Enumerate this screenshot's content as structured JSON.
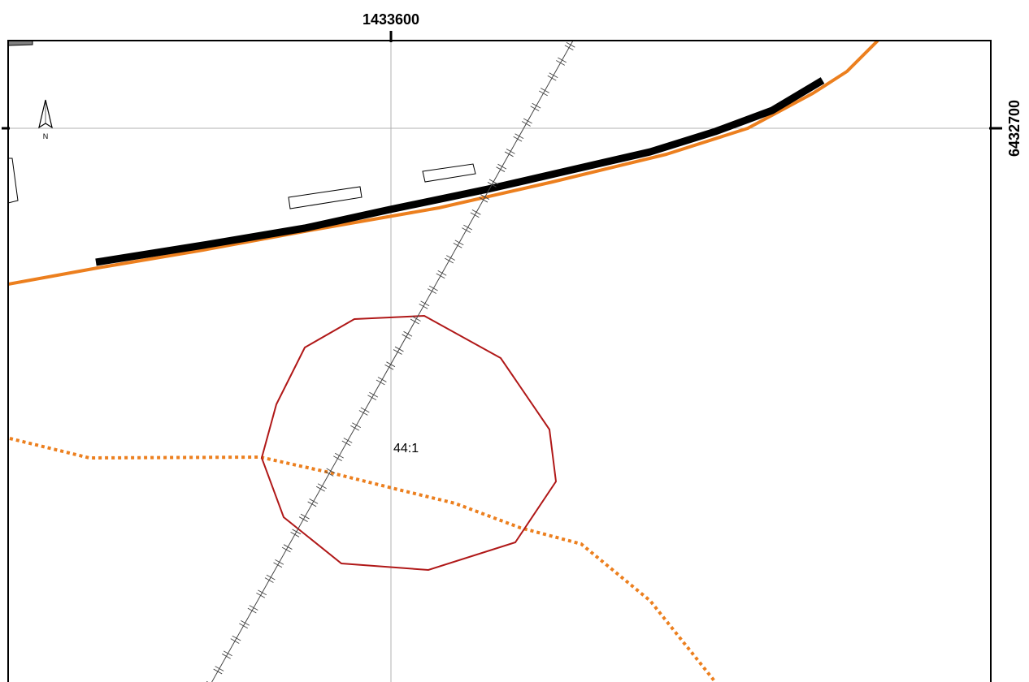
{
  "map": {
    "grid_x_label": "1433600",
    "grid_y_label": "6432700",
    "north_arrow_label": "N",
    "parcel_label": "44:1"
  },
  "colors": {
    "frame": "#000000",
    "gridline": "#b0b0b0",
    "road": "#ec7f1e",
    "road_casing": "#000000",
    "track": "#ec7f1e",
    "parcel": "#b01818",
    "railway": "#444444",
    "building_outline": "#000000"
  },
  "icons": {
    "north_arrow": "north-arrow-icon",
    "railway_tick": "railway-crossbar-icon"
  }
}
